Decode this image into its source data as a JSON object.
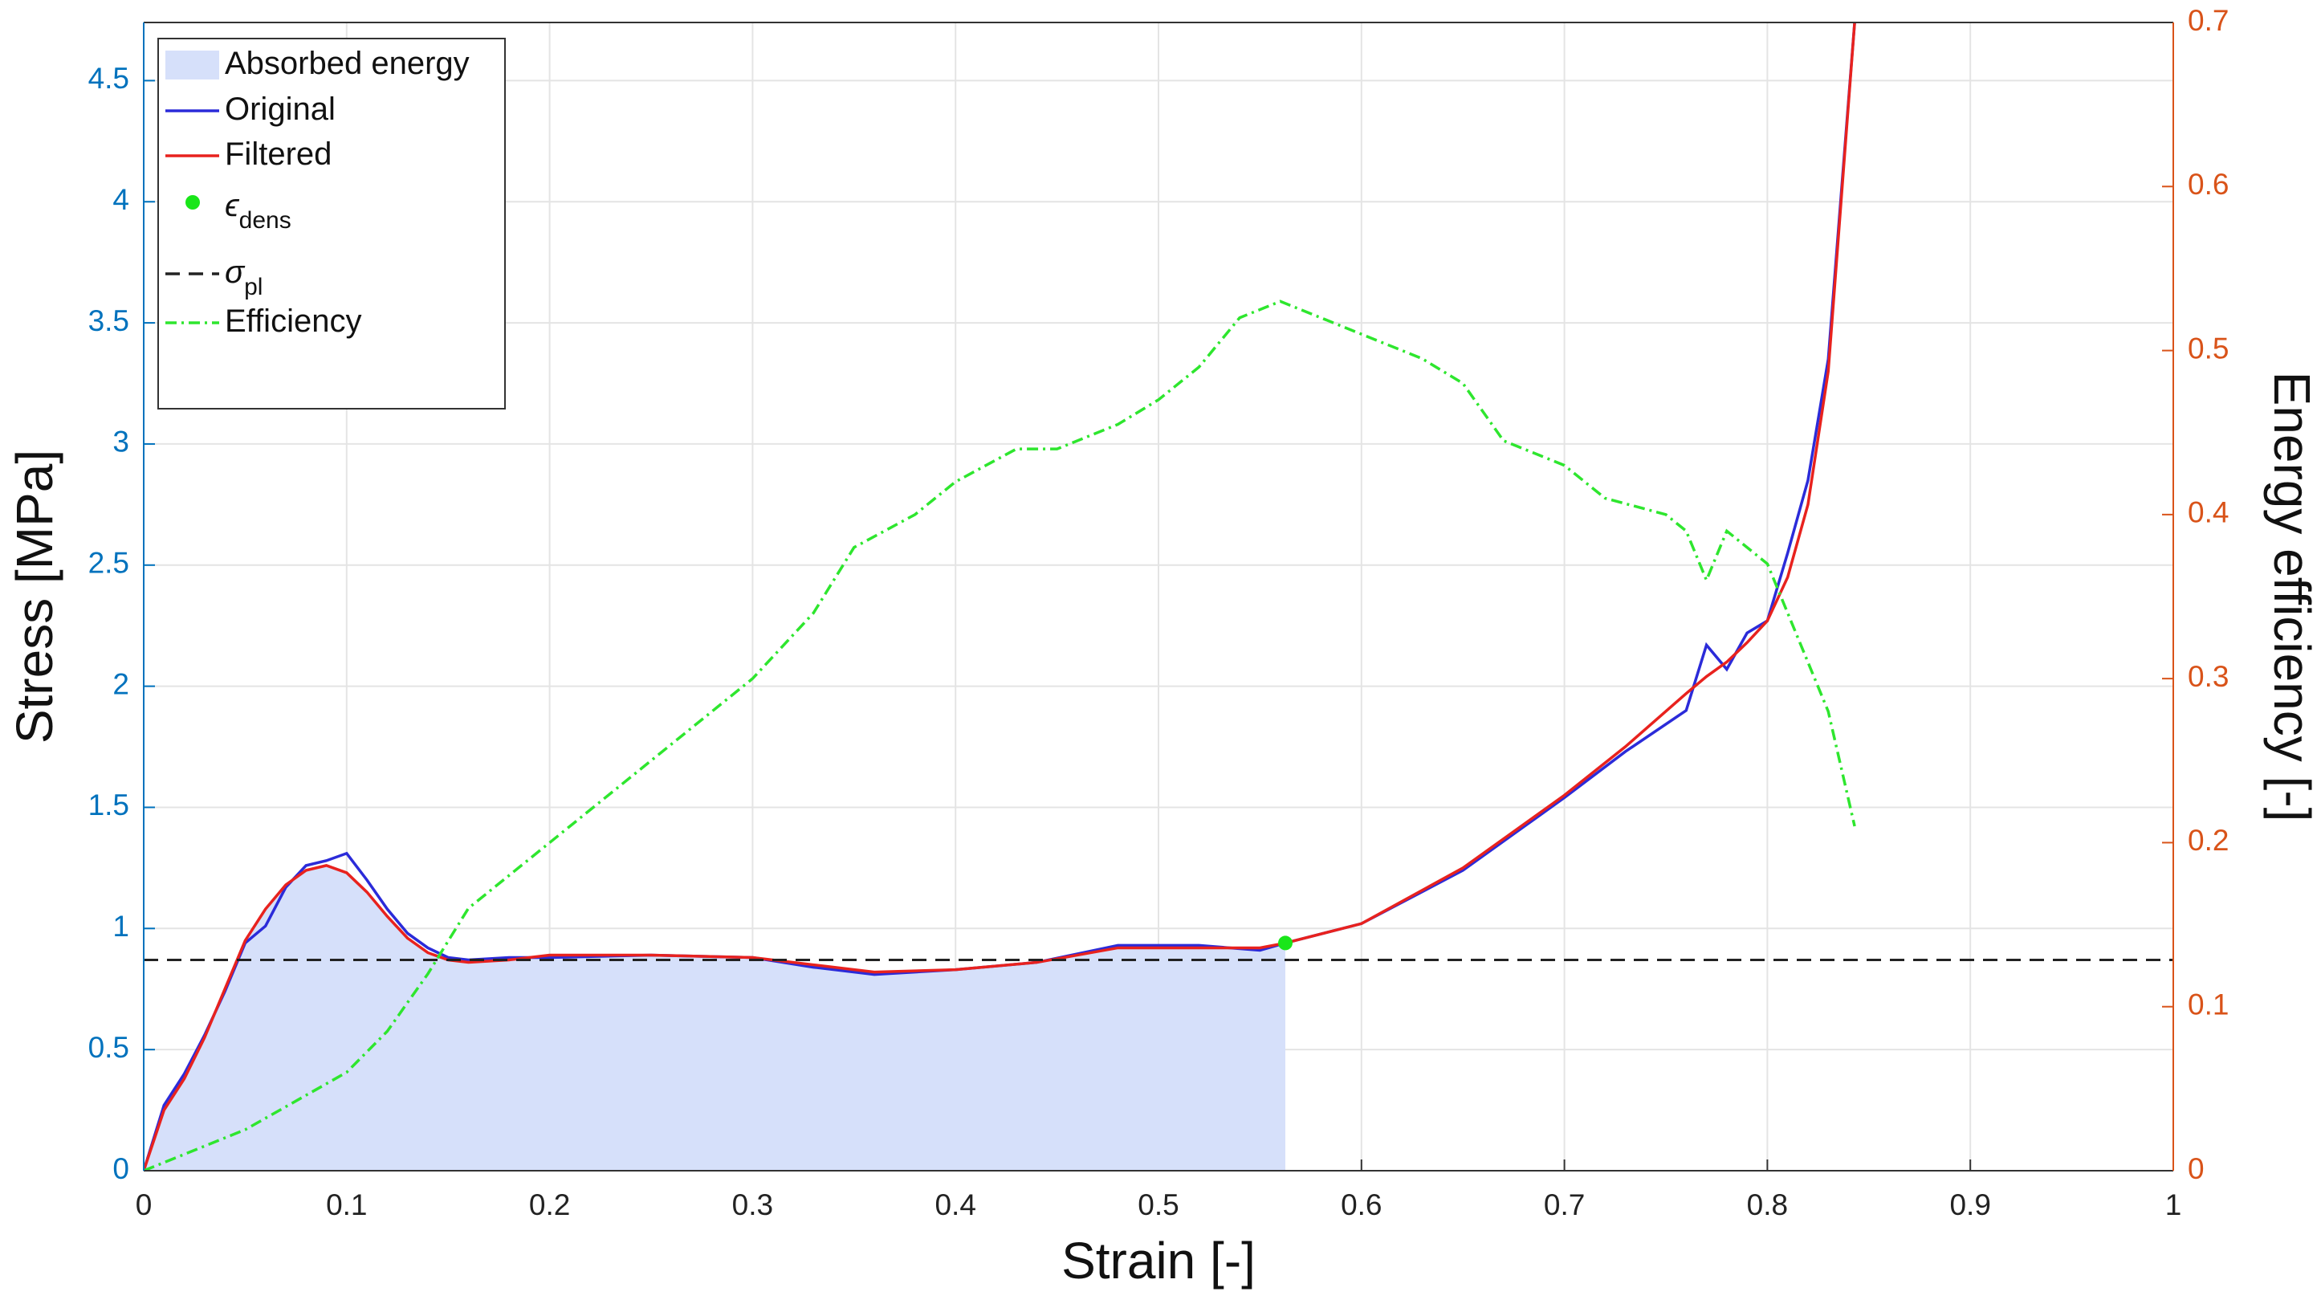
{
  "chart_data": {
    "type": "line",
    "xlabel": "Strain [-]",
    "ylabel": "Stress [MPa]",
    "y2label": "Energy efficiency [-]",
    "xlim": [
      0,
      1
    ],
    "ylim": [
      0,
      4.74
    ],
    "y2lim": [
      0,
      0.7
    ],
    "xticks": [
      0,
      0.1,
      0.2,
      0.3,
      0.4,
      0.5,
      0.6,
      0.7,
      0.8,
      0.9,
      1
    ],
    "yticks": [
      0,
      0.5,
      1,
      1.5,
      2,
      2.5,
      3,
      3.5,
      4,
      4.5
    ],
    "y2ticks": [
      0,
      0.1,
      0.2,
      0.3,
      0.4,
      0.5,
      0.6,
      0.7
    ],
    "grid": true,
    "legend": "upper left",
    "series": [
      {
        "name": "Absorbed energy",
        "type": "area",
        "color": "#d6e0fa",
        "x": [
          0,
          0.01,
          0.02,
          0.03,
          0.04,
          0.05,
          0.06,
          0.07,
          0.08,
          0.09,
          0.1,
          0.11,
          0.12,
          0.13,
          0.14,
          0.15,
          0.16,
          0.18,
          0.2,
          0.25,
          0.3,
          0.33,
          0.36,
          0.4,
          0.44,
          0.48,
          0.52,
          0.55,
          0.5625
        ],
        "values": [
          0,
          0.25,
          0.38,
          0.55,
          0.75,
          0.95,
          1.08,
          1.18,
          1.24,
          1.26,
          1.23,
          1.15,
          1.05,
          0.96,
          0.9,
          0.87,
          0.86,
          0.87,
          0.89,
          0.89,
          0.88,
          0.85,
          0.82,
          0.83,
          0.86,
          0.92,
          0.92,
          0.92,
          0.94
        ]
      },
      {
        "name": "Original",
        "type": "line",
        "color": "#2b2bd9",
        "x": [
          0,
          0.01,
          0.02,
          0.03,
          0.04,
          0.05,
          0.06,
          0.07,
          0.08,
          0.09,
          0.1,
          0.11,
          0.12,
          0.13,
          0.14,
          0.15,
          0.16,
          0.18,
          0.2,
          0.25,
          0.3,
          0.33,
          0.36,
          0.4,
          0.44,
          0.48,
          0.52,
          0.55,
          0.5625,
          0.6,
          0.65,
          0.7,
          0.73,
          0.76,
          0.77,
          0.78,
          0.79,
          0.8,
          0.81,
          0.82,
          0.83,
          0.843
        ],
        "values": [
          0,
          0.27,
          0.4,
          0.56,
          0.74,
          0.94,
          1.01,
          1.17,
          1.26,
          1.28,
          1.31,
          1.2,
          1.08,
          0.98,
          0.92,
          0.88,
          0.87,
          0.88,
          0.88,
          0.89,
          0.88,
          0.84,
          0.81,
          0.83,
          0.86,
          0.93,
          0.93,
          0.91,
          0.94,
          1.02,
          1.24,
          1.54,
          1.73,
          1.9,
          2.17,
          2.07,
          2.22,
          2.27,
          2.55,
          2.85,
          3.35,
          4.74
        ]
      },
      {
        "name": "Filtered",
        "type": "line",
        "color": "#e8221e",
        "x": [
          0,
          0.01,
          0.02,
          0.03,
          0.04,
          0.05,
          0.06,
          0.07,
          0.08,
          0.09,
          0.1,
          0.11,
          0.12,
          0.13,
          0.14,
          0.15,
          0.16,
          0.18,
          0.2,
          0.25,
          0.3,
          0.33,
          0.36,
          0.4,
          0.44,
          0.48,
          0.52,
          0.55,
          0.5625,
          0.6,
          0.65,
          0.7,
          0.73,
          0.76,
          0.77,
          0.78,
          0.79,
          0.8,
          0.81,
          0.82,
          0.83,
          0.843
        ],
        "values": [
          0,
          0.25,
          0.38,
          0.55,
          0.75,
          0.95,
          1.08,
          1.18,
          1.24,
          1.26,
          1.23,
          1.15,
          1.05,
          0.96,
          0.9,
          0.87,
          0.86,
          0.87,
          0.89,
          0.89,
          0.88,
          0.85,
          0.82,
          0.83,
          0.86,
          0.92,
          0.92,
          0.92,
          0.94,
          1.02,
          1.25,
          1.55,
          1.75,
          1.97,
          2.04,
          2.1,
          2.18,
          2.27,
          2.45,
          2.75,
          3.3,
          4.74
        ]
      },
      {
        "name": "ϵ",
        "name_sub": "dens",
        "type": "scatter",
        "color": "#19e619",
        "x": [
          0.5625
        ],
        "values": [
          0.94
        ]
      },
      {
        "name": "σ",
        "name_sub": "pl",
        "type": "hline",
        "color": "#222222",
        "style": "dashed",
        "value": 0.87
      },
      {
        "name": "Efficiency",
        "type": "line",
        "axis": "y2",
        "color": "#2ee62e",
        "style": "dashdot",
        "x": [
          0,
          0.05,
          0.1,
          0.12,
          0.14,
          0.16,
          0.2,
          0.25,
          0.3,
          0.33,
          0.35,
          0.38,
          0.4,
          0.43,
          0.45,
          0.48,
          0.5,
          0.52,
          0.54,
          0.56,
          0.57,
          0.6,
          0.63,
          0.65,
          0.67,
          0.7,
          0.72,
          0.75,
          0.76,
          0.77,
          0.78,
          0.8,
          0.81,
          0.83,
          0.843
        ],
        "values": [
          0,
          0.025,
          0.06,
          0.085,
          0.12,
          0.16,
          0.2,
          0.25,
          0.3,
          0.34,
          0.38,
          0.4,
          0.42,
          0.44,
          0.44,
          0.455,
          0.47,
          0.49,
          0.52,
          0.53,
          0.525,
          0.51,
          0.495,
          0.48,
          0.445,
          0.43,
          0.41,
          0.4,
          0.39,
          0.36,
          0.39,
          0.37,
          0.34,
          0.28,
          0.21
        ]
      }
    ]
  }
}
